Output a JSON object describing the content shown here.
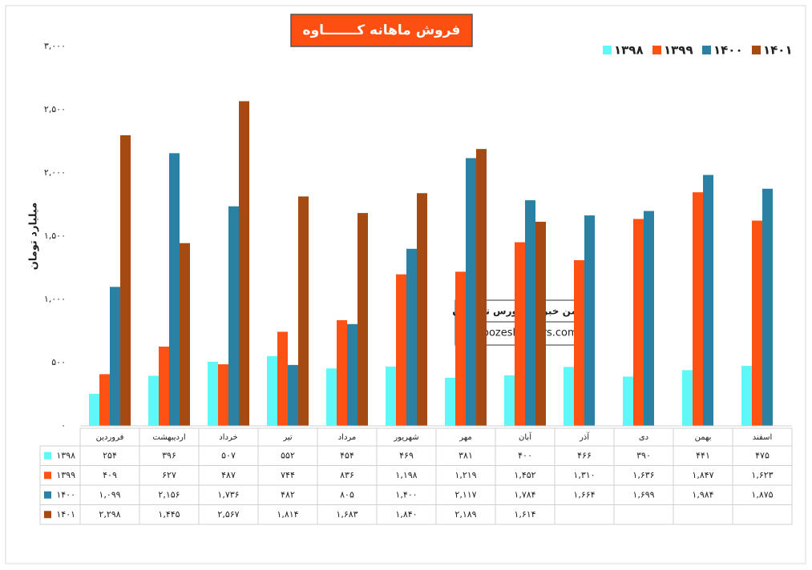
{
  "chart_data": {
    "type": "bar",
    "title": "فروش ماهانه کـــــــاوه",
    "y_label": "میلیارد تومان",
    "annotations": [
      "انجمن خبرگان بورس تهـــران",
      "amoozesh-boors.com"
    ],
    "categories": [
      "فروردین",
      "اردیبهشت",
      "خرداد",
      "تیر",
      "مرداد",
      "شهریور",
      "مهر",
      "آبان",
      "آذر",
      "دی",
      "بهمن",
      "اسفند"
    ],
    "series": [
      {
        "name": "۱۳۹۸",
        "color": "#5ff7f7",
        "values": [
          254,
          396,
          507,
          552,
          454,
          469,
          381,
          400,
          466,
          390,
          441,
          475
        ],
        "value_labels": [
          "۲۵۴",
          "۳۹۶",
          "۵۰۷",
          "۵۵۲",
          "۴۵۴",
          "۴۶۹",
          "۳۸۱",
          "۴۰۰",
          "۴۶۶",
          "۳۹۰",
          "۴۴۱",
          "۴۷۵"
        ]
      },
      {
        "name": "۱۳۹۹",
        "color": "#fd5214",
        "values": [
          409,
          627,
          487,
          744,
          836,
          1198,
          1219,
          1452,
          1310,
          1636,
          1847,
          1623
        ],
        "value_labels": [
          "۴۰۹",
          "۶۲۷",
          "۴۸۷",
          "۷۴۴",
          "۸۳۶",
          "۱,۱۹۸",
          "۱,۲۱۹",
          "۱,۴۵۲",
          "۱,۳۱۰",
          "۱,۶۳۶",
          "۱,۸۴۷",
          "۱,۶۲۳"
        ]
      },
      {
        "name": "۱۴۰۰",
        "color": "#2a81a3",
        "values": [
          1099,
          2156,
          1736,
          482,
          805,
          1400,
          2117,
          1784,
          1664,
          1699,
          1984,
          1875
        ],
        "value_labels": [
          "۱,۰۹۹",
          "۲,۱۵۶",
          "۱,۷۳۶",
          "۴۸۲",
          "۸۰۵",
          "۱,۴۰۰",
          "۲,۱۱۷",
          "۱,۷۸۴",
          "۱,۶۶۴",
          "۱,۶۹۹",
          "۱,۹۸۴",
          "۱,۸۷۵"
        ]
      },
      {
        "name": "۱۴۰۱",
        "color": "#a54a12",
        "values": [
          2298,
          1445,
          2567,
          1814,
          1683,
          1840,
          2189,
          1614,
          null,
          null,
          null,
          null
        ],
        "value_labels": [
          "۲,۲۹۸",
          "۱,۴۴۵",
          "۲,۵۶۷",
          "۱,۸۱۴",
          "۱,۶۸۳",
          "۱,۸۴۰",
          "۲,۱۸۹",
          "۱,۶۱۴",
          null,
          null,
          null,
          null
        ]
      }
    ],
    "ylim": [
      0,
      3000
    ],
    "yticks": [
      {
        "value": 0,
        "label": "۰"
      },
      {
        "value": 500,
        "label": "۵۰۰"
      },
      {
        "value": 1000,
        "label": "۱,۰۰۰"
      },
      {
        "value": 1500,
        "label": "۱,۵۰۰"
      },
      {
        "value": 2000,
        "label": "۲,۰۰۰"
      },
      {
        "value": 2500,
        "label": "۲,۵۰۰"
      },
      {
        "value": 3000,
        "label": "۳,۰۰۰"
      }
    ],
    "grid": false,
    "legend": "top-right"
  }
}
